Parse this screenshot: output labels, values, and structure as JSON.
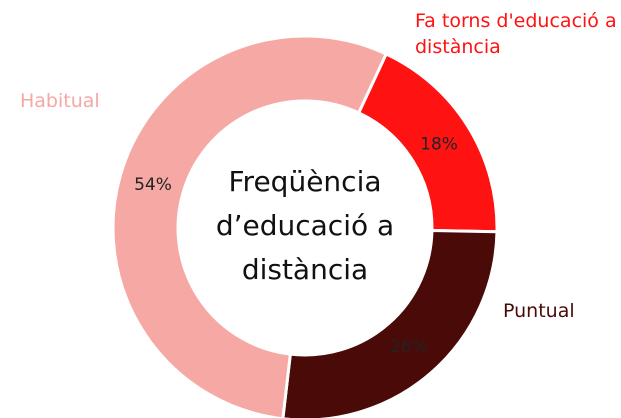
{
  "chart_data": {
    "type": "donut",
    "title": "Freqüència d’educació a distància",
    "categories": [
      "Fa torns d'educació a distància",
      "Puntual",
      "Habitual"
    ],
    "values": [
      18,
      26,
      54
    ],
    "value_labels": [
      "18%",
      "26%",
      "54%"
    ],
    "colors": [
      "#ff1212",
      "#4a0b08",
      "#f5a8a4"
    ]
  }
}
